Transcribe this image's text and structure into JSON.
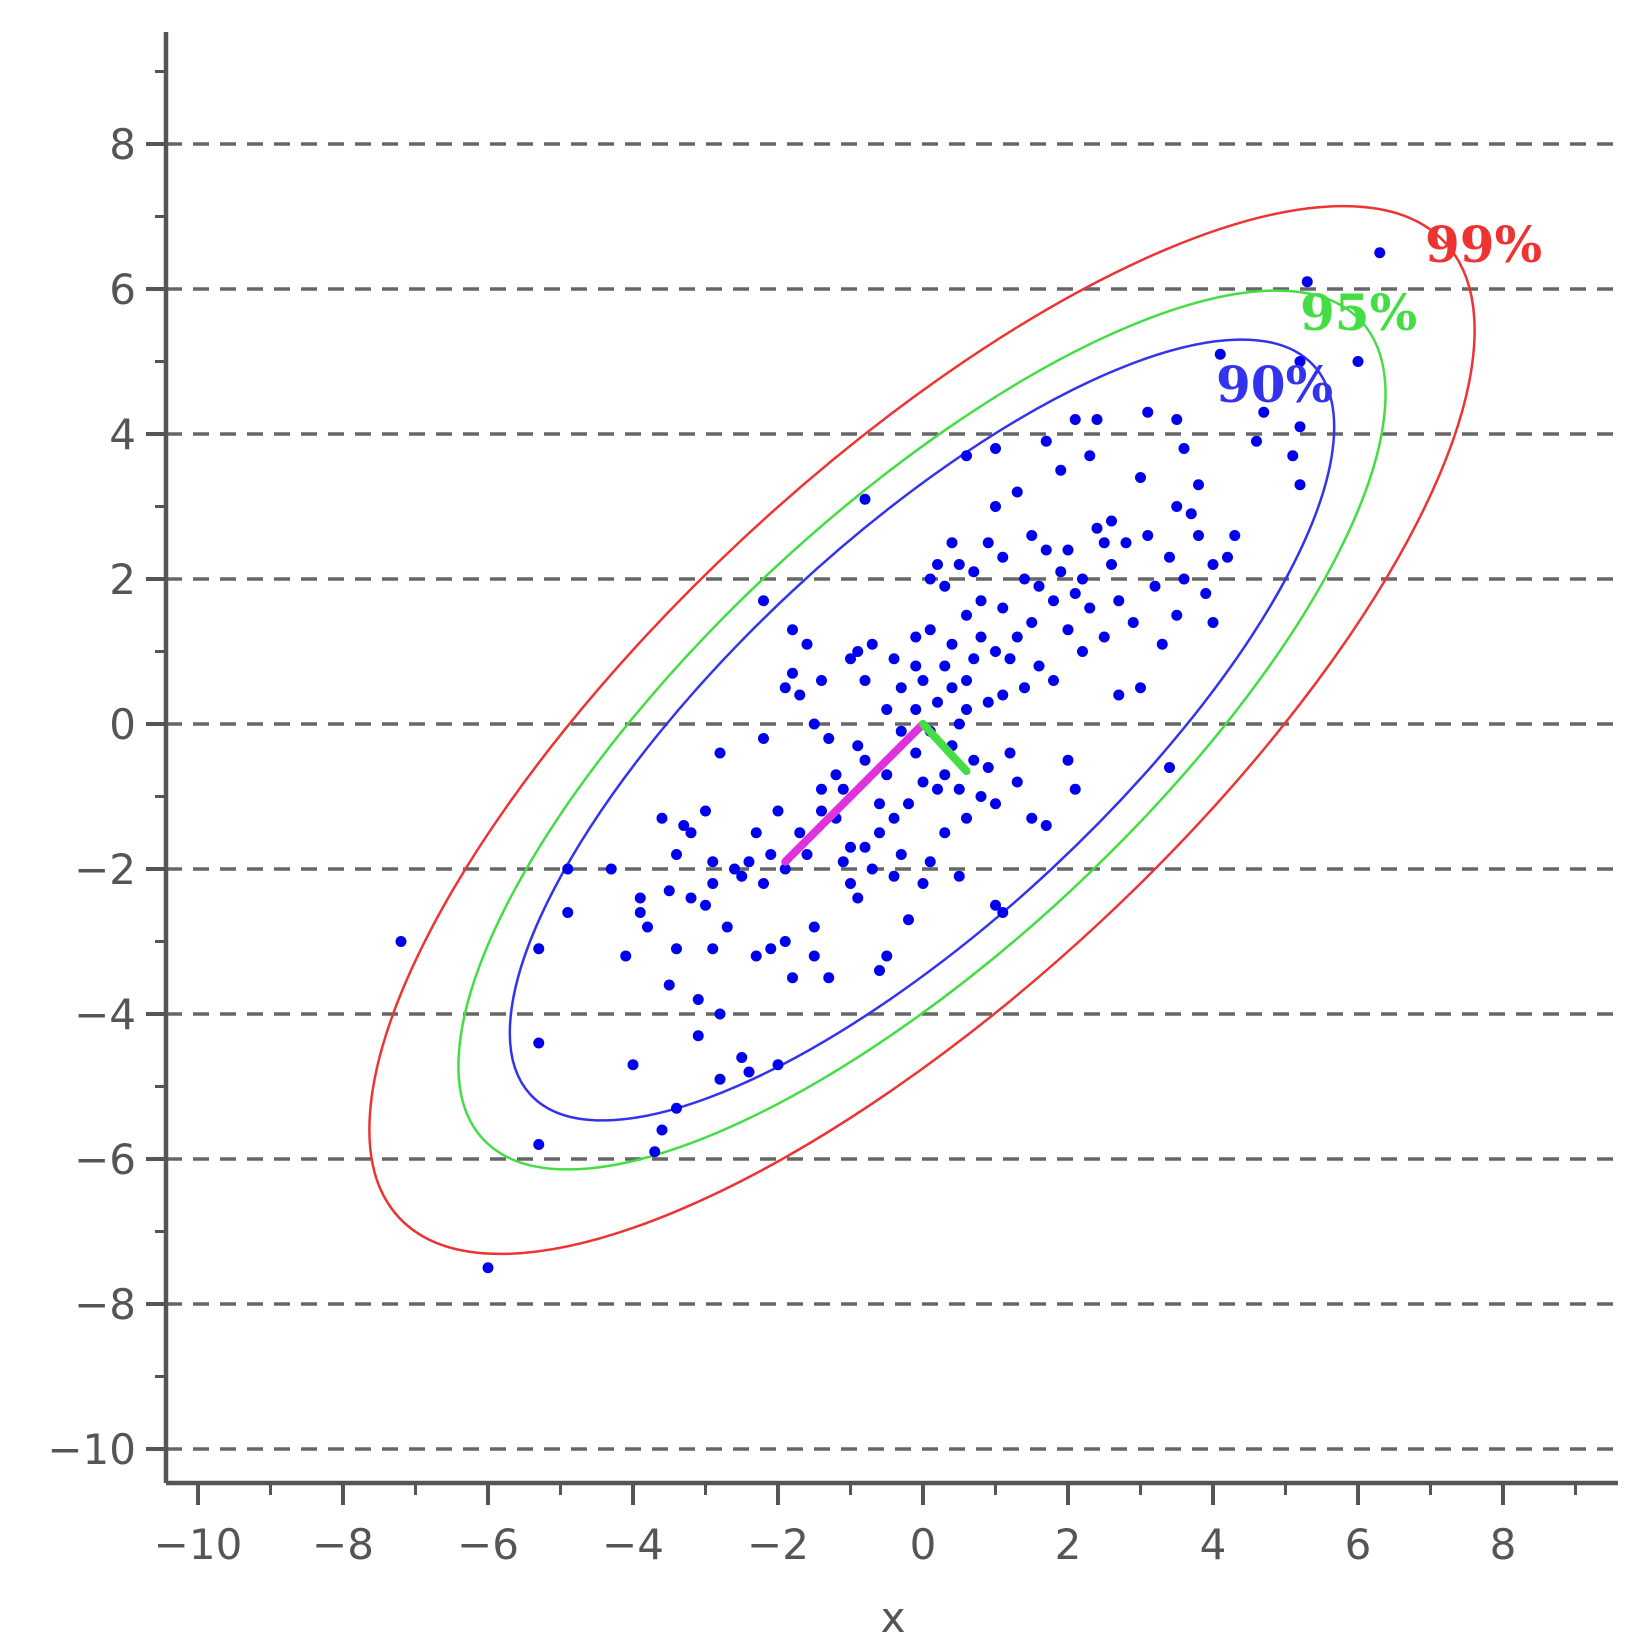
{
  "chart_data": {
    "type": "scatter",
    "title": "",
    "xlabel": "x",
    "ylabel": "",
    "xlim": [
      -10.5,
      9.5
    ],
    "ylim": [
      -10.5,
      9.5
    ],
    "x_ticks": [
      "−10",
      "−8",
      "−6",
      "−4",
      "−2",
      "0",
      "2",
      "4",
      "6",
      "8"
    ],
    "y_ticks": [
      "8",
      "6",
      "4",
      "2",
      "0",
      "−2",
      "−4",
      "−6",
      "−8",
      "−10"
    ],
    "grid": "horizontal-dashed",
    "point_color": "#0000ee",
    "points": [
      [
        -7.2,
        -3.0
      ],
      [
        -6.0,
        -7.5
      ],
      [
        -5.3,
        -5.8
      ],
      [
        -5.3,
        -4.4
      ],
      [
        -5.3,
        -3.1
      ],
      [
        -4.9,
        -2.0
      ],
      [
        -4.9,
        -2.6
      ],
      [
        -4.3,
        -2.0
      ],
      [
        -4.1,
        -3.2
      ],
      [
        -4.0,
        -4.7
      ],
      [
        -3.9,
        -2.4
      ],
      [
        -3.9,
        -2.6
      ],
      [
        -3.8,
        -2.8
      ],
      [
        -3.7,
        -5.9
      ],
      [
        -3.6,
        -5.6
      ],
      [
        -3.6,
        -1.3
      ],
      [
        -3.5,
        -2.3
      ],
      [
        -3.5,
        -3.6
      ],
      [
        -3.4,
        -1.8
      ],
      [
        -3.4,
        -5.3
      ],
      [
        -3.4,
        -3.1
      ],
      [
        -3.3,
        -1.4
      ],
      [
        -3.2,
        -1.5
      ],
      [
        -3.2,
        -2.4
      ],
      [
        -3.1,
        -4.3
      ],
      [
        -3.1,
        -3.8
      ],
      [
        -3.0,
        -2.5
      ],
      [
        -3.0,
        -1.2
      ],
      [
        -2.9,
        -1.9
      ],
      [
        -2.9,
        -3.1
      ],
      [
        -2.9,
        -2.2
      ],
      [
        -2.8,
        -4.9
      ],
      [
        -2.8,
        -4.0
      ],
      [
        -2.8,
        -0.4
      ],
      [
        -2.7,
        -2.8
      ],
      [
        -2.6,
        -2.0
      ],
      [
        -2.5,
        -4.6
      ],
      [
        -2.5,
        -2.1
      ],
      [
        -2.4,
        -1.9
      ],
      [
        -2.4,
        -4.8
      ],
      [
        -2.3,
        -1.5
      ],
      [
        -2.3,
        -3.2
      ],
      [
        -2.2,
        -0.2
      ],
      [
        -2.2,
        -2.2
      ],
      [
        -2.2,
        1.7
      ],
      [
        -2.1,
        -3.1
      ],
      [
        -2.1,
        -1.8
      ],
      [
        -2.0,
        -4.7
      ],
      [
        -2.0,
        -1.2
      ],
      [
        -1.9,
        -3.0
      ],
      [
        -1.9,
        -2.0
      ],
      [
        -1.9,
        0.5
      ],
      [
        -1.8,
        -3.5
      ],
      [
        -1.8,
        0.7
      ],
      [
        -1.8,
        1.3
      ],
      [
        -1.7,
        -1.5
      ],
      [
        -1.7,
        0.4
      ],
      [
        -1.6,
        1.1
      ],
      [
        -1.6,
        -1.8
      ],
      [
        -1.5,
        -3.2
      ],
      [
        -1.5,
        0.0
      ],
      [
        -1.5,
        -2.8
      ],
      [
        -1.4,
        -0.9
      ],
      [
        -1.4,
        -1.2
      ],
      [
        -1.4,
        0.6
      ],
      [
        -1.3,
        -3.5
      ],
      [
        -1.3,
        -0.2
      ],
      [
        -1.2,
        -1.3
      ],
      [
        -1.2,
        -0.7
      ],
      [
        -1.1,
        -1.9
      ],
      [
        -1.1,
        -0.9
      ],
      [
        -1.0,
        -2.2
      ],
      [
        -1.0,
        0.9
      ],
      [
        -1.0,
        -1.7
      ],
      [
        -0.9,
        -0.3
      ],
      [
        -0.9,
        -2.4
      ],
      [
        -0.9,
        1.0
      ],
      [
        -0.8,
        3.1
      ],
      [
        -0.8,
        0.6
      ],
      [
        -0.8,
        -0.5
      ],
      [
        -0.8,
        -1.7
      ],
      [
        -0.7,
        -2.0
      ],
      [
        -0.7,
        1.1
      ],
      [
        -0.6,
        -1.5
      ],
      [
        -0.6,
        -3.4
      ],
      [
        -0.6,
        -1.1
      ],
      [
        -0.5,
        -0.7
      ],
      [
        -0.5,
        0.2
      ],
      [
        -0.5,
        -3.2
      ],
      [
        -0.4,
        -2.1
      ],
      [
        -0.4,
        -1.3
      ],
      [
        -0.4,
        0.9
      ],
      [
        -0.3,
        -1.8
      ],
      [
        -0.3,
        -0.1
      ],
      [
        -0.3,
        0.5
      ],
      [
        -0.2,
        -1.1
      ],
      [
        -0.2,
        -2.7
      ],
      [
        -0.1,
        0.2
      ],
      [
        -0.1,
        1.2
      ],
      [
        -0.1,
        -0.4
      ],
      [
        0.0,
        -0.8
      ],
      [
        0.0,
        -2.2
      ],
      [
        0.0,
        0.6
      ],
      [
        0.1,
        2.0
      ],
      [
        0.1,
        -1.9
      ],
      [
        0.1,
        -0.1
      ],
      [
        0.1,
        1.3
      ],
      [
        0.2,
        -0.9
      ],
      [
        0.2,
        0.3
      ],
      [
        0.2,
        2.2
      ],
      [
        0.3,
        -0.7
      ],
      [
        0.3,
        0.8
      ],
      [
        0.3,
        1.9
      ],
      [
        0.3,
        -1.5
      ],
      [
        0.4,
        -0.3
      ],
      [
        0.4,
        2.5
      ],
      [
        0.4,
        0.5
      ],
      [
        0.4,
        1.1
      ],
      [
        0.5,
        -2.1
      ],
      [
        0.5,
        -0.9
      ],
      [
        0.5,
        2.2
      ],
      [
        0.5,
        0.0
      ],
      [
        0.6,
        1.5
      ],
      [
        0.6,
        0.2
      ],
      [
        0.6,
        -1.3
      ],
      [
        0.6,
        3.7
      ],
      [
        0.7,
        0.9
      ],
      [
        0.7,
        2.1
      ],
      [
        0.7,
        -0.5
      ],
      [
        0.8,
        1.2
      ],
      [
        0.8,
        -1.0
      ],
      [
        0.8,
        1.7
      ],
      [
        0.9,
        0.3
      ],
      [
        0.9,
        -0.6
      ],
      [
        0.9,
        2.5
      ],
      [
        1.0,
        3.0
      ],
      [
        1.0,
        -1.1
      ],
      [
        1.0,
        1.0
      ],
      [
        1.0,
        -2.5
      ],
      [
        1.1,
        2.3
      ],
      [
        1.1,
        0.4
      ],
      [
        1.1,
        1.6
      ],
      [
        1.1,
        -2.6
      ],
      [
        1.2,
        -0.4
      ],
      [
        1.2,
        0.9
      ],
      [
        1.3,
        3.2
      ],
      [
        1.3,
        1.2
      ],
      [
        1.3,
        -0.8
      ],
      [
        1.4,
        2.0
      ],
      [
        1.4,
        0.5
      ],
      [
        1.5,
        1.4
      ],
      [
        1.5,
        2.6
      ],
      [
        1.5,
        -1.3
      ],
      [
        1.6,
        0.8
      ],
      [
        1.6,
        1.9
      ],
      [
        1.7,
        2.4
      ],
      [
        1.7,
        -1.4
      ],
      [
        1.7,
        3.9
      ],
      [
        1.8,
        1.7
      ],
      [
        1.8,
        0.6
      ],
      [
        1.9,
        2.1
      ],
      [
        1.9,
        3.5
      ],
      [
        2.0,
        -0.5
      ],
      [
        2.0,
        1.3
      ],
      [
        2.0,
        2.4
      ],
      [
        2.1,
        4.2
      ],
      [
        2.1,
        -0.9
      ],
      [
        2.1,
        1.8
      ],
      [
        2.2,
        2.0
      ],
      [
        2.2,
        1.0
      ],
      [
        2.3,
        3.7
      ],
      [
        2.3,
        1.6
      ],
      [
        2.4,
        2.7
      ],
      [
        2.4,
        4.2
      ],
      [
        2.5,
        2.5
      ],
      [
        2.5,
        1.2
      ],
      [
        2.6,
        2.2
      ],
      [
        2.6,
        2.8
      ],
      [
        2.7,
        0.4
      ],
      [
        2.7,
        1.7
      ],
      [
        2.8,
        2.5
      ],
      [
        2.9,
        1.4
      ],
      [
        3.0,
        3.4
      ],
      [
        3.0,
        0.5
      ],
      [
        3.1,
        4.3
      ],
      [
        3.1,
        2.6
      ],
      [
        3.2,
        1.9
      ],
      [
        3.3,
        1.1
      ],
      [
        3.4,
        -0.6
      ],
      [
        3.4,
        2.3
      ],
      [
        3.5,
        3.0
      ],
      [
        3.5,
        4.2
      ],
      [
        3.5,
        1.5
      ],
      [
        3.6,
        2.0
      ],
      [
        3.6,
        3.8
      ],
      [
        3.7,
        2.9
      ],
      [
        3.8,
        2.6
      ],
      [
        3.8,
        3.3
      ],
      [
        3.9,
        1.8
      ],
      [
        4.0,
        2.2
      ],
      [
        4.0,
        1.4
      ],
      [
        4.1,
        5.1
      ],
      [
        4.2,
        2.3
      ],
      [
        4.3,
        2.6
      ],
      [
        4.6,
        3.9
      ],
      [
        4.7,
        4.3
      ],
      [
        5.1,
        3.7
      ],
      [
        5.2,
        4.1
      ],
      [
        5.2,
        5.0
      ],
      [
        5.2,
        3.3
      ],
      [
        5.3,
        6.1
      ],
      [
        6.0,
        5.0
      ],
      [
        6.3,
        6.5
      ],
      [
        1.0,
        3.8
      ],
      [
        -0.1,
        0.8
      ],
      [
        0.6,
        0.6
      ]
    ],
    "ellipses": [
      {
        "name": "90%",
        "color": "#3333ee"
      },
      {
        "name": "95%",
        "color": "#44dd44"
      },
      {
        "name": "99%",
        "color": "#ee3333"
      }
    ],
    "principal_axes": [
      {
        "color": "#dd33dd",
        "from": [
          0,
          0
        ],
        "to": [
          -1.9,
          -1.9
        ]
      },
      {
        "color": "#44dd44",
        "from": [
          0,
          0
        ],
        "to": [
          0.6,
          -0.65
        ]
      }
    ]
  }
}
